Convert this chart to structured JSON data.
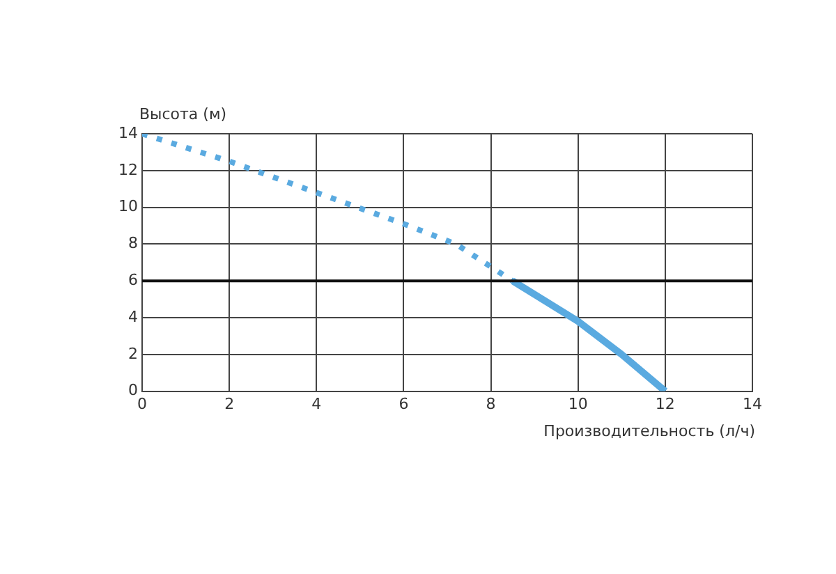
{
  "chart_data": {
    "type": "line",
    "xlabel": "Производительность (л/ч)",
    "ylabel": "Высота (м)",
    "series": [
      {
        "color": "#5aaae0",
        "line_style": "dotted",
        "x": [
          0,
          2,
          4,
          6,
          7.2,
          8.5
        ],
        "values": [
          14,
          12.5,
          10.8,
          9.1,
          8,
          6
        ]
      },
      {
        "color": "#5aaae0",
        "line_style": "solid",
        "x": [
          8.5,
          10,
          11,
          12
        ],
        "values": [
          6,
          3.8,
          2,
          0
        ]
      }
    ],
    "xlim": [
      0,
      14
    ],
    "xticks": [
      0,
      2,
      4,
      6,
      8,
      10,
      12,
      14
    ],
    "ylim": [
      0,
      14
    ],
    "yticks": [
      0,
      2,
      4,
      6,
      8,
      10,
      12,
      14
    ],
    "ref_lines": [
      {
        "axis": "y",
        "value": 6,
        "color": "#111111"
      }
    ],
    "grid": true,
    "legend": false,
    "marker": "none"
  }
}
